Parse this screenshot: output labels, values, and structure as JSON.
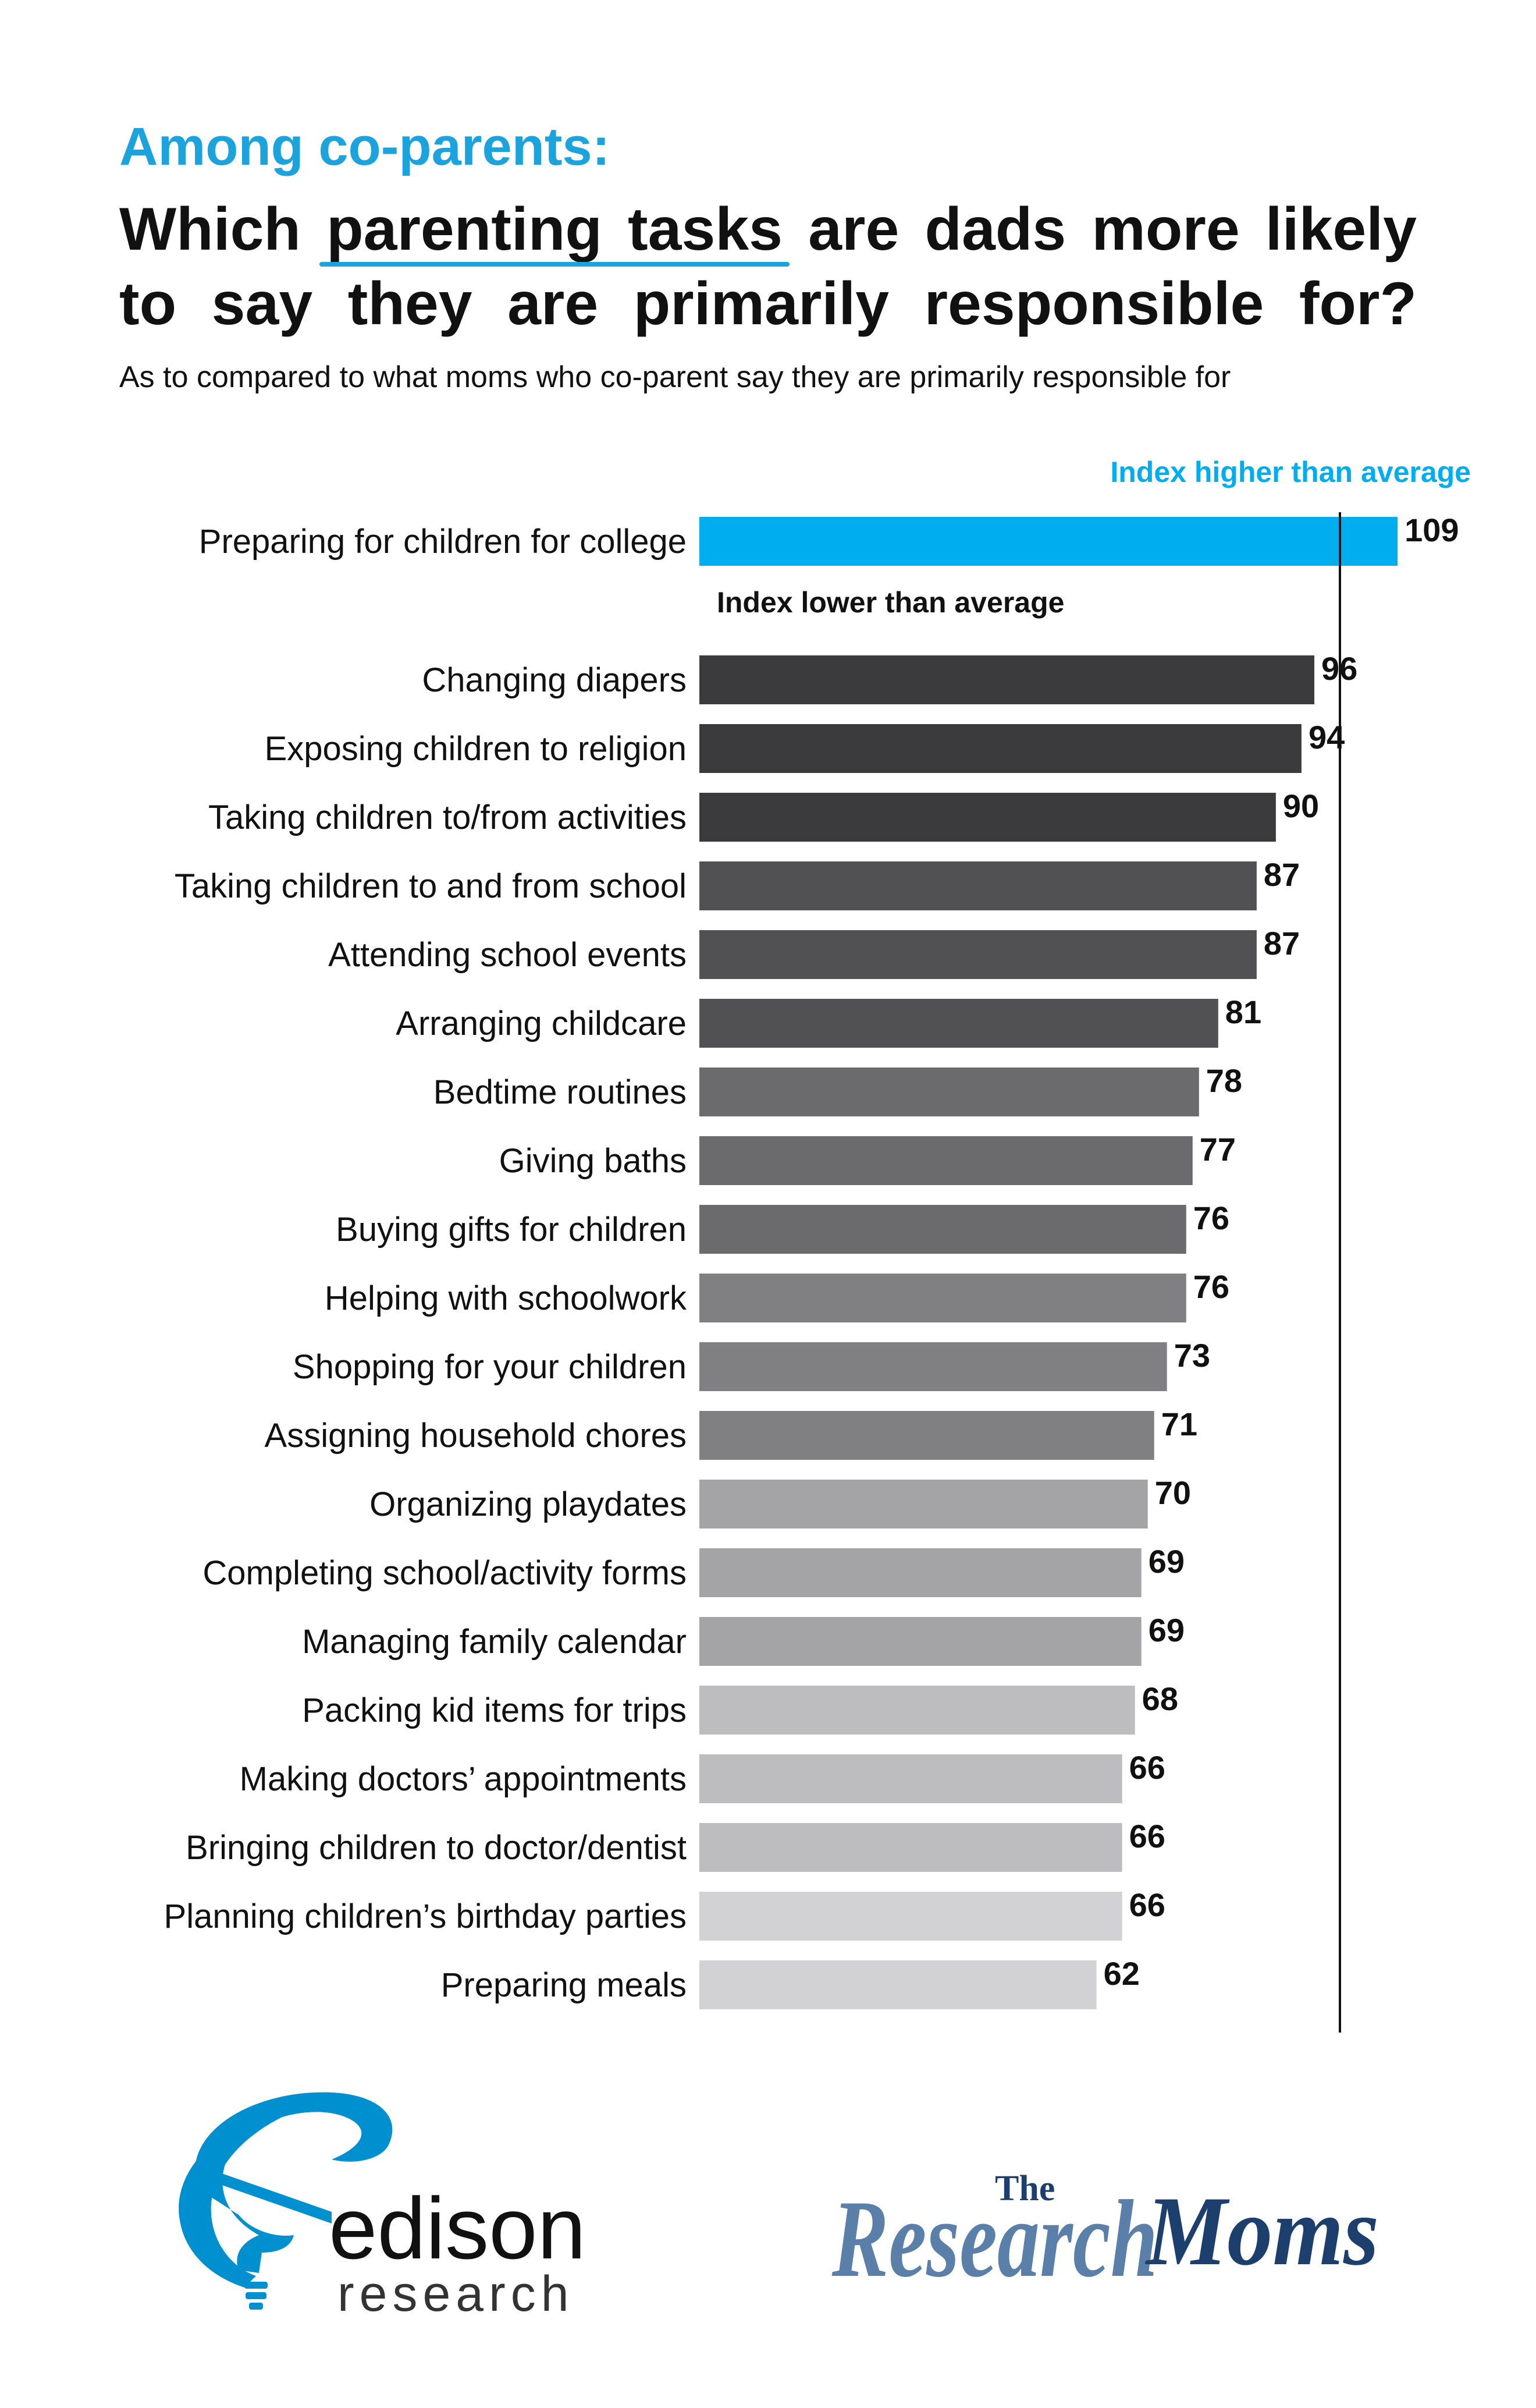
{
  "header": {
    "eyebrow": "Among co-parents:",
    "headline_line1_pre": "Which ",
    "headline_highlight": "parenting tasks",
    "headline_line1_post": " are dads more likely",
    "headline_line2": "to say they are primarily responsible for?",
    "subtitle": "As to compared to what moms who co-parent say they are primarily responsible for"
  },
  "colors": {
    "accent": "#00aeef",
    "title_blue": "#1aa3dc",
    "text": "#111111",
    "ref_line": "#111111"
  },
  "chart_data": {
    "type": "bar",
    "orientation": "horizontal",
    "xlim": [
      0,
      120
    ],
    "xticks": [
      0,
      20,
      40,
      60,
      80,
      100,
      120
    ],
    "reference_line": 100,
    "grid": false,
    "annotations": [
      {
        "text": "Index higher than average",
        "color": "#00aeef"
      },
      {
        "text": "Index lower than average",
        "color": "#111111"
      }
    ],
    "categories": [
      "Preparing for children for college",
      "Changing diapers",
      "Exposing children to religion",
      "Taking children to/from activities",
      "Taking children to and from school",
      "Attending school events",
      "Arranging childcare",
      "Bedtime routines",
      "Giving baths",
      "Buying gifts for children",
      "Helping with schoolwork",
      "Shopping for your children",
      "Assigning household chores",
      "Organizing playdates",
      "Completing school/activity forms",
      "Managing family calendar",
      "Packing kid items for trips",
      "Making doctors’ appointments",
      "Bringing children to doctor/dentist",
      "Planning children’s birthday parties",
      "Preparing meals"
    ],
    "values": [
      109,
      96,
      94,
      90,
      87,
      87,
      81,
      78,
      77,
      76,
      76,
      73,
      71,
      70,
      69,
      69,
      68,
      66,
      66,
      66,
      62
    ],
    "bar_colors": [
      "#00aeef",
      "#3b3b3d",
      "#3b3b3d",
      "#3b3b3d",
      "#515153",
      "#515153",
      "#515153",
      "#6b6b6e",
      "#6b6b6e",
      "#6b6b6e",
      "#808083",
      "#808083",
      "#808083",
      "#a4a4a7",
      "#a4a4a7",
      "#a4a4a7",
      "#bdbdbf",
      "#bdbdbf",
      "#bdbdbf",
      "#d2d2d4",
      "#d2d2d4"
    ]
  },
  "logos": {
    "edison_word": "edison",
    "edison_sub": "research",
    "rm_the": "The",
    "rm_research": "Research",
    "rm_moms": "Moms"
  }
}
